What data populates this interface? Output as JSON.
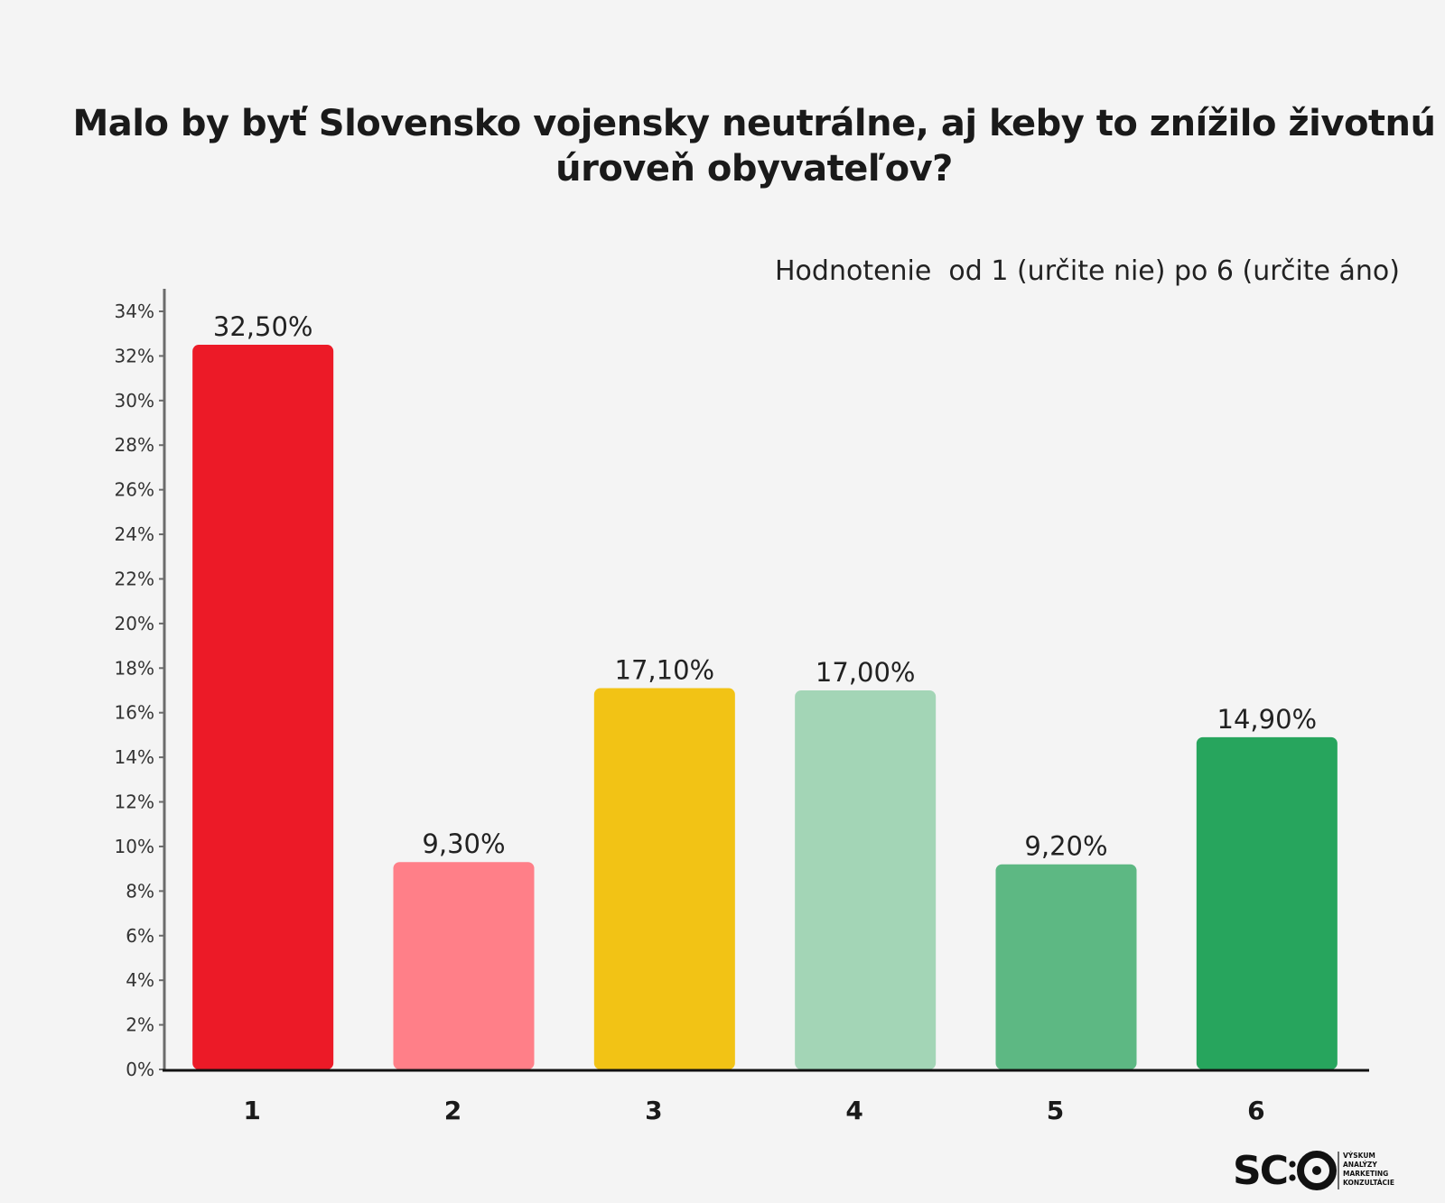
{
  "chart_data": {
    "type": "bar",
    "title": "Malo by byť Slovensko vojensky neutrálne, aj keby to znížilo životnú úroveň obyvateľov?",
    "subtitle": "Hodnotenie  od 1 (určite nie) po 6 (určite áno)",
    "categories": [
      "1",
      "2",
      "3",
      "4",
      "5",
      "6"
    ],
    "values": [
      32.5,
      9.3,
      17.1,
      17.0,
      9.2,
      14.9
    ],
    "value_labels": [
      "32,50%",
      "9,30%",
      "17,10%",
      "17,00%",
      "9,20%",
      "14,90%"
    ],
    "colors": [
      "#ec1a27",
      "#ff7f88",
      "#f2c315",
      "#a3d5b6",
      "#5db883",
      "#27a55d"
    ],
    "ylim": [
      0,
      34
    ],
    "yticks": [
      0,
      2,
      4,
      6,
      8,
      10,
      12,
      14,
      16,
      18,
      20,
      22,
      24,
      26,
      28,
      30,
      32,
      34
    ],
    "ytick_labels": [
      "0%",
      "2%",
      "4%",
      "6%",
      "8%",
      "10%",
      "12%",
      "14%",
      "16%",
      "18%",
      "20%",
      "22%",
      "24%",
      "26%",
      "28%",
      "30%",
      "32%",
      "34%"
    ],
    "xlabel": "",
    "ylabel": "",
    "grid": false,
    "legend": "none"
  },
  "logo": {
    "brand": "SC:O",
    "tagline": [
      "VÝSKUM",
      "ANALÝZY",
      "MARKETING",
      "KONZULTÁCIE"
    ]
  }
}
